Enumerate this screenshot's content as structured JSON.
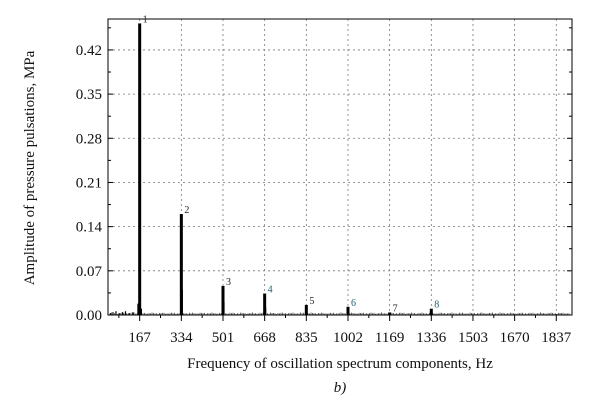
{
  "chart_data": {
    "type": "bar",
    "xlabel": "Frequency of oscillation spectrum components, Hz",
    "ylabel": "Amplitude of pressure pulsations, MPa",
    "panel_label": "b)",
    "x_ticks": [
      167,
      334,
      501,
      668,
      835,
      1002,
      1169,
      1336,
      1503,
      1670,
      1837
    ],
    "y_ticks": [
      "0.00",
      "0.07",
      "0.14",
      "0.21",
      "0.28",
      "0.35",
      "0.42"
    ],
    "xlim": [
      40,
      1900
    ],
    "ylim": [
      0,
      0.469
    ],
    "grid": true,
    "peaks": [
      {
        "label": "1",
        "x": 167,
        "y": 0.462,
        "label_color": "#222222"
      },
      {
        "label": "2",
        "x": 334,
        "y": 0.16,
        "label_color": "#222222"
      },
      {
        "label": "3",
        "x": 501,
        "y": 0.046,
        "label_color": "#222222"
      },
      {
        "label": "4",
        "x": 668,
        "y": 0.034,
        "label_color": "#1f5f6f"
      },
      {
        "label": "5",
        "x": 835,
        "y": 0.016,
        "label_color": "#222222"
      },
      {
        "label": "6",
        "x": 1002,
        "y": 0.013,
        "label_color": "#1f5f6f"
      },
      {
        "label": "7",
        "x": 1169,
        "y": 0.004,
        "label_color": "#222222"
      },
      {
        "label": "8",
        "x": 1336,
        "y": 0.01,
        "label_color": "#1f5f6f"
      }
    ],
    "minor_spikes": [
      {
        "x": 160,
        "y": 0.018
      },
      {
        "x": 174,
        "y": 0.01
      },
      {
        "x": 338,
        "y": 0.04
      },
      {
        "x": 505,
        "y": 0.02
      },
      {
        "x": 672,
        "y": 0.012
      }
    ]
  }
}
